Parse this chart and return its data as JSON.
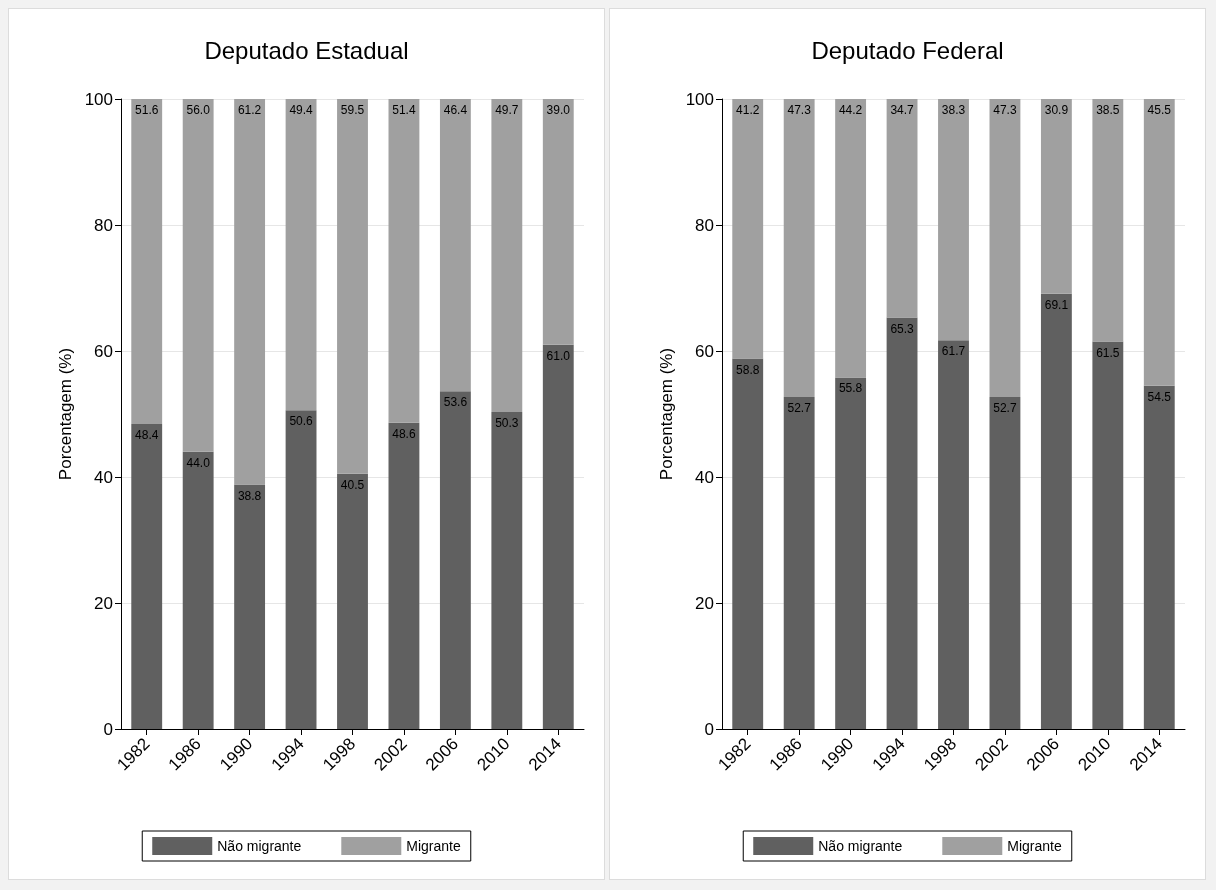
{
  "chart_data": [
    {
      "type": "bar",
      "title": "Deputado Estadual",
      "ylabel": "Porcentagem (%)",
      "categories": [
        "1982",
        "1986",
        "1990",
        "1994",
        "1998",
        "2002",
        "2006",
        "2010",
        "2014"
      ],
      "stacked": true,
      "ylim": [
        0,
        100
      ],
      "yticks": [
        0,
        20,
        40,
        60,
        80,
        100
      ],
      "grid": "y",
      "legend": "bottom",
      "series": [
        {
          "name": "Não migrante",
          "color": "#606060",
          "values": [
            48.4,
            44.0,
            38.8,
            50.6,
            40.5,
            48.6,
            53.6,
            50.3,
            61.0
          ],
          "value_labels": [
            "48.4",
            "44.0",
            "38.8",
            "50.6",
            "40.5",
            "48.6",
            "53.6",
            "50.3",
            "61.0"
          ]
        },
        {
          "name": "Migrante",
          "color": "#a0a0a0",
          "values": [
            51.6,
            56.0,
            61.2,
            49.4,
            59.5,
            51.4,
            46.4,
            49.7,
            39.0
          ],
          "value_labels": [
            "51.6",
            "56.0",
            "61.2",
            "49.4",
            "59.5",
            "51.4",
            "46.4",
            "49.7",
            "39.0"
          ]
        }
      ]
    },
    {
      "type": "bar",
      "title": "Deputado Federal",
      "ylabel": "Porcentagem (%)",
      "categories": [
        "1982",
        "1986",
        "1990",
        "1994",
        "1998",
        "2002",
        "2006",
        "2010",
        "2014"
      ],
      "stacked": true,
      "ylim": [
        0,
        100
      ],
      "yticks": [
        0,
        20,
        40,
        60,
        80,
        100
      ],
      "grid": "y",
      "legend": "bottom",
      "series": [
        {
          "name": "Não migrante",
          "color": "#606060",
          "values": [
            58.8,
            52.7,
            55.8,
            65.3,
            61.7,
            52.7,
            69.1,
            61.5,
            54.5
          ],
          "value_labels": [
            "58.8",
            "52.7",
            "55.8",
            "65.3",
            "61.7",
            "52.7",
            "69.1",
            "61.5",
            "54.5"
          ]
        },
        {
          "name": "Migrante",
          "color": "#a0a0a0",
          "values": [
            41.2,
            47.3,
            44.2,
            34.7,
            38.3,
            47.3,
            30.9,
            38.5,
            45.5
          ],
          "value_labels": [
            "41.2",
            "47.3",
            "44.2",
            "34.7",
            "38.3",
            "47.3",
            "30.9",
            "38.5",
            "45.5"
          ]
        }
      ]
    }
  ]
}
